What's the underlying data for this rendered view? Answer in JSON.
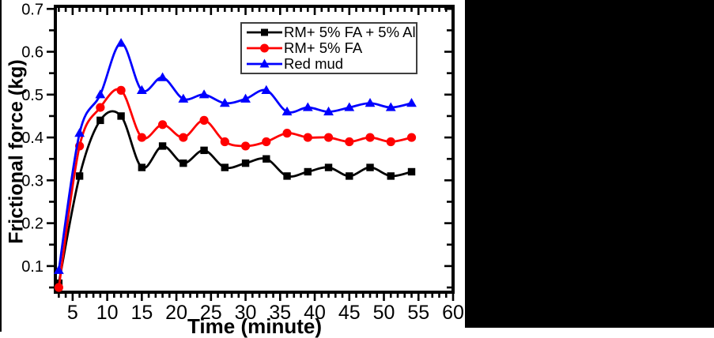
{
  "chart_data": {
    "type": "line",
    "title": "",
    "xlabel": "Time (minute)",
    "ylabel": "Frictional force (kg)",
    "x": [
      3,
      6,
      9,
      12,
      15,
      18,
      21,
      24,
      27,
      30,
      33,
      36,
      39,
      42,
      45,
      48,
      51,
      54
    ],
    "series": [
      {
        "name": "RM+ 5% FA + 5% Al",
        "color": "#000000",
        "marker": "square",
        "values": [
          0.06,
          0.31,
          0.44,
          0.45,
          0.33,
          0.38,
          0.34,
          0.37,
          0.33,
          0.34,
          0.35,
          0.31,
          0.32,
          0.33,
          0.31,
          0.33,
          0.31,
          0.32
        ]
      },
      {
        "name": "RM+ 5% FA",
        "color": "#ff0000",
        "marker": "circle",
        "values": [
          0.05,
          0.38,
          0.47,
          0.51,
          0.4,
          0.43,
          0.4,
          0.44,
          0.39,
          0.38,
          0.39,
          0.41,
          0.4,
          0.4,
          0.39,
          0.4,
          0.39,
          0.4
        ]
      },
      {
        "name": "Red mud",
        "color": "#0000ff",
        "marker": "triangle-up",
        "values": [
          0.09,
          0.41,
          0.5,
          0.62,
          0.51,
          0.54,
          0.49,
          0.5,
          0.48,
          0.49,
          0.51,
          0.46,
          0.47,
          0.46,
          0.47,
          0.48,
          0.47,
          0.48
        ]
      }
    ],
    "x_ticks": [
      5,
      10,
      15,
      20,
      25,
      30,
      35,
      40,
      45,
      50,
      55,
      60
    ],
    "x_minor_step": 1,
    "y_ticks": [
      0.1,
      0.2,
      0.3,
      0.4,
      0.5,
      0.6,
      0.7
    ],
    "y_minor_step": 0.05,
    "xlim": [
      2.5,
      60
    ],
    "ylim": [
      0.039,
      0.706
    ],
    "grid": false,
    "curve": "smooth",
    "legend_position": "top-center-inside",
    "frame_color": "#000000",
    "background_color": "#ffffff"
  }
}
